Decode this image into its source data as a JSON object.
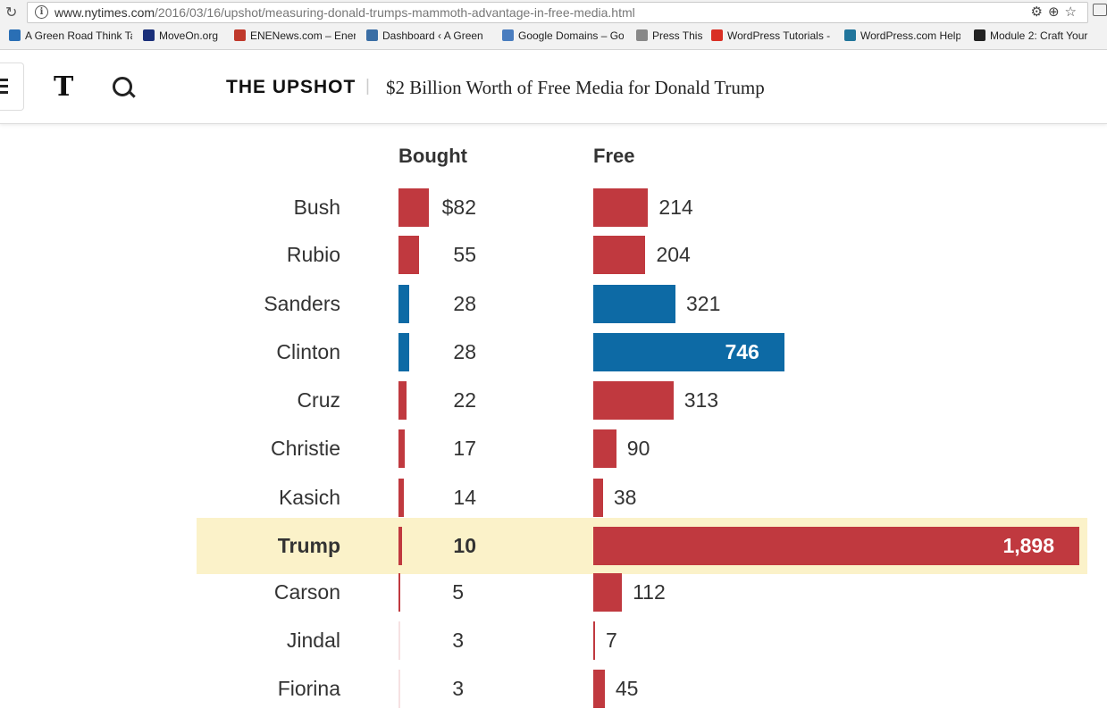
{
  "browser": {
    "url_host": "www.nytimes.com",
    "url_path": "/2016/03/16/upshot/measuring-donald-trumps-mammoth-advantage-in-free-media.html",
    "bookmarks": [
      {
        "label": "A Green Road Think Ta",
        "color": "#2a6fb5"
      },
      {
        "label": "MoveOn.org",
        "color": "#1a2f7a"
      },
      {
        "label": "ENENews.com – Energ",
        "color": "#c0392b"
      },
      {
        "label": "Dashboard ‹ A Green",
        "color": "#3a6ea5"
      },
      {
        "label": "Google Domains – Go",
        "color": "#4a7dbf"
      },
      {
        "label": "Press This",
        "color": "#888888"
      },
      {
        "label": "WordPress Tutorials -",
        "color": "#d93025"
      },
      {
        "label": "WordPress.com Help",
        "color": "#21759b"
      },
      {
        "label": "Module 2: Craft Your",
        "color": "#222222"
      }
    ]
  },
  "header": {
    "section": "THE UPSHOT",
    "separator": "|",
    "headline": "$2 Billion Worth of Free Media for Donald Trump",
    "logo_glyph": "T"
  },
  "chart_data": {
    "type": "bar",
    "columns": [
      "Bought",
      "Free"
    ],
    "highlight": "Trump",
    "colors": {
      "republican": "#c0393f",
      "democrat": "#0d6aa5",
      "highlight_bg": "#fbf2c9"
    },
    "rows": [
      {
        "name": "Bush",
        "bought": 82,
        "bought_label": "$82",
        "free": 214,
        "free_label": "214",
        "party": "republican"
      },
      {
        "name": "Rubio",
        "bought": 55,
        "bought_label": "55",
        "free": 204,
        "free_label": "204",
        "party": "republican"
      },
      {
        "name": "Sanders",
        "bought": 28,
        "bought_label": "28",
        "free": 321,
        "free_label": "321",
        "party": "democrat"
      },
      {
        "name": "Clinton",
        "bought": 28,
        "bought_label": "28",
        "free": 746,
        "free_label": "746",
        "party": "democrat"
      },
      {
        "name": "Cruz",
        "bought": 22,
        "bought_label": "22",
        "free": 313,
        "free_label": "313",
        "party": "republican"
      },
      {
        "name": "Christie",
        "bought": 17,
        "bought_label": "17",
        "free": 90,
        "free_label": "90",
        "party": "republican"
      },
      {
        "name": "Kasich",
        "bought": 14,
        "bought_label": "14",
        "free": 38,
        "free_label": "38",
        "party": "republican"
      },
      {
        "name": "Trump",
        "bought": 10,
        "bought_label": "10",
        "free": 1898,
        "free_label": "1,898",
        "party": "republican"
      },
      {
        "name": "Carson",
        "bought": 5,
        "bought_label": "5",
        "free": 112,
        "free_label": "112",
        "party": "republican"
      },
      {
        "name": "Jindal",
        "bought": 3,
        "bought_label": "3",
        "free": 7,
        "free_label": "7",
        "party": "republican"
      },
      {
        "name": "Fiorina",
        "bought": 3,
        "bought_label": "3",
        "free": 45,
        "free_label": "45",
        "party": "republican"
      }
    ]
  }
}
